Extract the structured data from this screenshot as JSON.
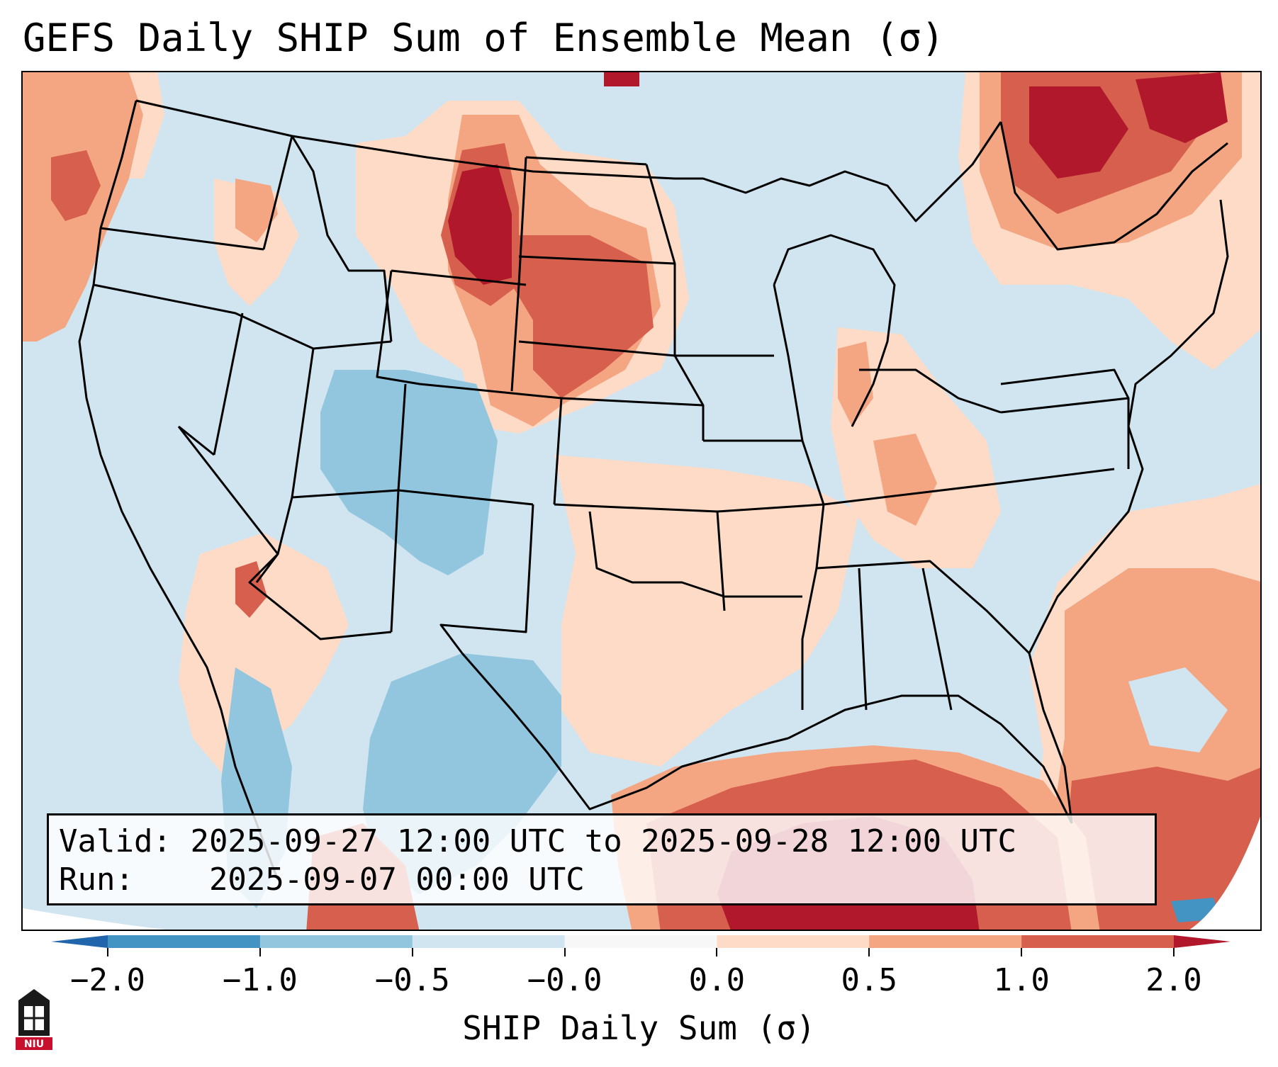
{
  "title": "GEFS Daily SHIP Sum of Ensemble Mean (σ)",
  "info": {
    "valid_label": "Valid:",
    "valid_value": "2025-09-27 12:00 UTC to 2025-09-28 12:00 UTC",
    "run_label": "Run:",
    "run_value": "2025-09-07 00:00 UTC"
  },
  "colorbar": {
    "label": "SHIP Daily Sum (σ)",
    "tick_labels": [
      "−2.0",
      "−1.0",
      "−0.5",
      "−0.0",
      "0.0",
      "0.5",
      "1.0",
      "2.0"
    ],
    "colors": [
      "#4393c3",
      "#92c5de",
      "#d1e5f0",
      "#f7f7f7",
      "#fddbc7",
      "#f4a582",
      "#d6604d",
      "#b2182b"
    ],
    "min_extend_color": "#2166ac",
    "max_extend_color": "#b2182b"
  },
  "logo": {
    "text": "NIU",
    "icon": "niu-logo-icon"
  }
}
